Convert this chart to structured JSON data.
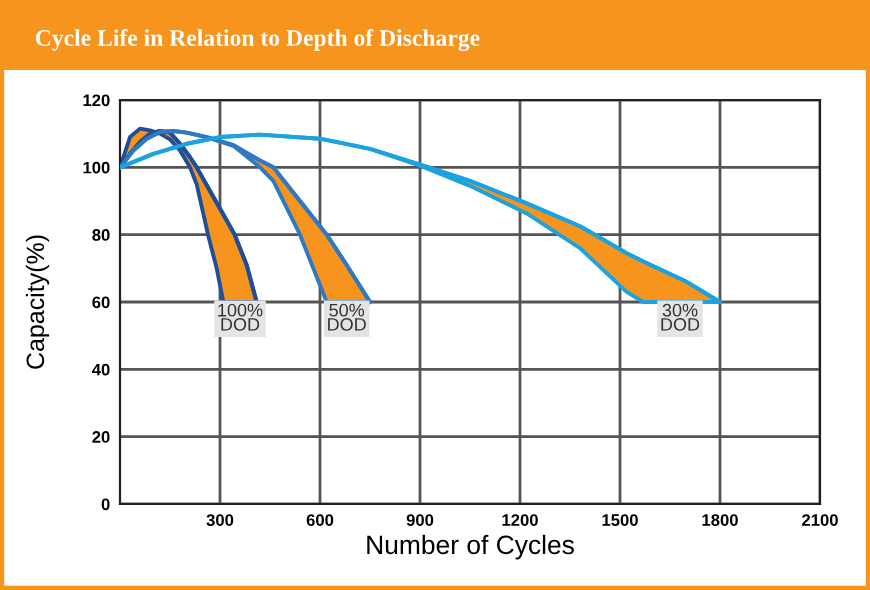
{
  "chart_data": {
    "type": "line",
    "title": "Cycle Life in Relation to Depth of Discharge",
    "xlabel": "Number of Cycles",
    "ylabel": "Capacity(%)",
    "xlim": [
      0,
      2100
    ],
    "xticks": [
      300,
      600,
      900,
      1200,
      1500,
      1800,
      2100
    ],
    "ylim": [
      0,
      120
    ],
    "yticks": [
      0,
      20,
      40,
      60,
      80,
      100,
      120
    ],
    "grid": true,
    "marker": "none",
    "line_style": "solid",
    "series": [
      {
        "color": "#1f4e9a",
        "x": [
          0,
          30,
          60,
          90,
          120,
          150,
          180,
          210,
          230,
          264,
          290,
          310,
          344,
          380,
          410
        ],
        "upper": [
          100,
          104,
          107.5,
          110,
          110.8,
          110.3,
          107,
          103,
          100,
          94,
          89.5,
          86,
          80,
          71,
          60
        ],
        "lower": [
          100,
          109,
          111.5,
          111,
          110,
          108.3,
          105,
          100,
          95,
          80,
          70,
          60,
          60,
          60,
          60
        ],
        "values": [
          100,
          104,
          107.5,
          110,
          110.8,
          110.3,
          107,
          103,
          100,
          94,
          89.5,
          86,
          80,
          71,
          60
        ]
      },
      {
        "color": "#2f78c4",
        "x": [
          0,
          40,
          80,
          120,
          160,
          200,
          260,
          340,
          420,
          460,
          540,
          620,
          680,
          750
        ],
        "upper": [
          100,
          105,
          108.5,
          110.5,
          110.8,
          110.3,
          109,
          106.6,
          102,
          100,
          90,
          80,
          71,
          60
        ],
        "lower": [
          100,
          105,
          108.5,
          110.5,
          110.8,
          110.3,
          109,
          106.4,
          100,
          96,
          80,
          60,
          60,
          60
        ],
        "values": [
          100,
          105,
          108.5,
          110.5,
          110.8,
          110.3,
          109,
          106.6,
          102,
          100,
          90,
          80,
          71,
          60
        ]
      },
      {
        "color": "#1aa3e0",
        "x": [
          0,
          100,
          200,
          300,
          420,
          600,
          750,
          900,
          1050,
          1220,
          1380,
          1520,
          1570,
          1700,
          1800
        ],
        "upper": [
          100,
          104,
          107,
          109,
          109.7,
          108.5,
          105.5,
          100.8,
          96,
          89.3,
          82.5,
          74.5,
          72,
          66,
          60
        ],
        "lower": [
          100,
          104,
          107,
          109,
          109.7,
          108.5,
          105.5,
          100.5,
          94.5,
          86.3,
          76,
          63,
          60,
          60,
          60
        ],
        "values": [
          100,
          104,
          107,
          109,
          109.7,
          108.5,
          105.5,
          100.8,
          96,
          89.3,
          82.5,
          74.5,
          72,
          66,
          60
        ]
      }
    ],
    "annotations": [
      {
        "text": "100%\nDOD",
        "x": 360,
        "y": 55
      },
      {
        "text": "50%\nDOD",
        "x": 680,
        "y": 55
      },
      {
        "text": "30%\nDOD",
        "x": 1680,
        "y": 55
      }
    ]
  }
}
